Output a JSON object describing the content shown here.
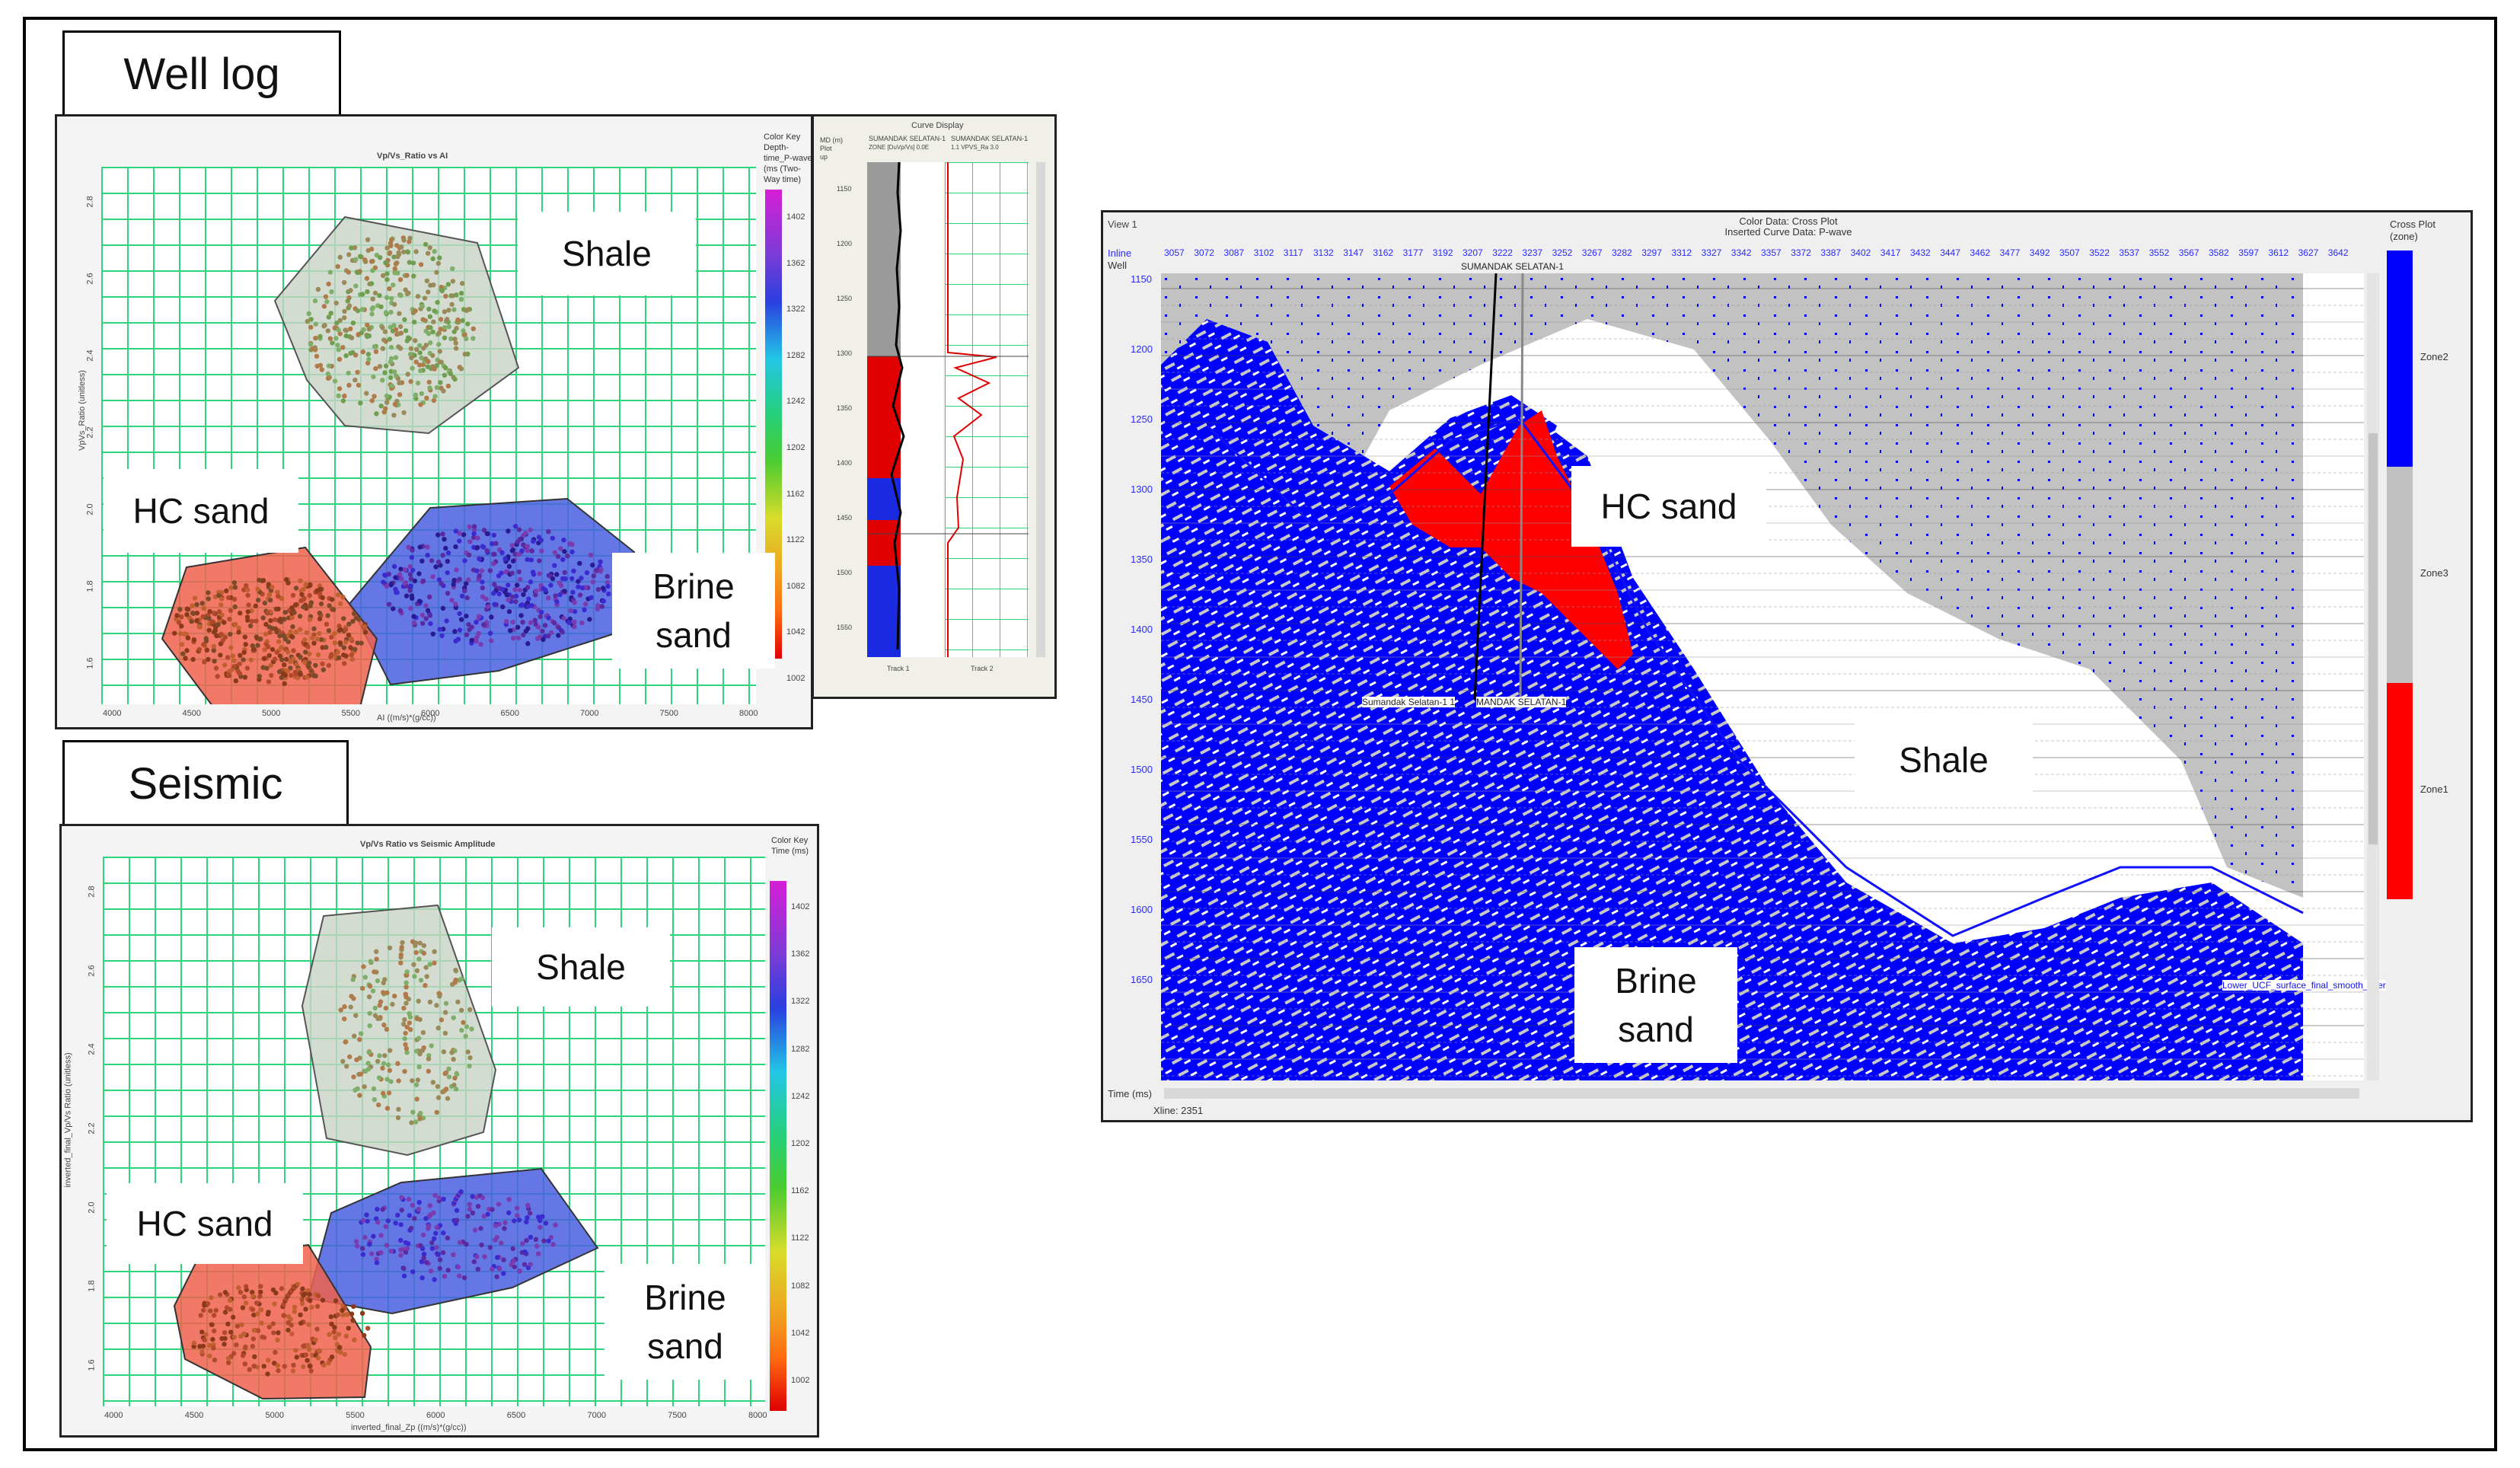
{
  "sections": {
    "well_log": "Well log",
    "seismic": "Seismic"
  },
  "well_crossplot": {
    "title": "Vp/Vs_Ratio vs AI",
    "ylabel": "VpVs_Ratio (unitless)",
    "xlabel": "AI ((m/s)*(g/cc))",
    "x_ticks": [
      "4000",
      "4500",
      "5000",
      "5500",
      "6000",
      "6500",
      "7000",
      "7500",
      "8000"
    ],
    "y_ticks": [
      "1.6",
      "1.8",
      "2.0",
      "2.2",
      "2.4",
      "2.6",
      "2.8"
    ],
    "color_key_title": "Color Key\nDepth-time_P-wave\n(ms (Two-Way time)",
    "color_key_ticks": [
      "1402",
      "1362",
      "1322",
      "1282",
      "1242",
      "1202",
      "1162",
      "1122",
      "1082",
      "1042",
      "1002"
    ],
    "zones": {
      "shale": "Shale",
      "hc_sand": "HC sand",
      "brine_sand": "Brine\nsand"
    }
  },
  "curve_display": {
    "title": "Curve Display",
    "header_left": "MD (m)\nPlot\nup",
    "track1_name": "SUMANDAK SELATAN-1",
    "track2_name": "SUMANDAK SELATAN-1",
    "track1_curve": "ZONE  [DuVp/Vs]  0.0E",
    "track2_curve": "1.1  VPVS_Ra  3.0",
    "depths": [
      "1150",
      "1200",
      "1250",
      "1300",
      "1350",
      "1400",
      "1450",
      "1500",
      "1550"
    ],
    "track1_label": "Track 1",
    "track2_label": "Track 2"
  },
  "seismic_crossplot": {
    "title": "Vp/Vs Ratio vs Seismic Amplitude",
    "ylabel": "inverted_final_Vp/Vs Ratio (unitless)",
    "xlabel": "inverted_final_Zp ((m/s)*(g/cc))",
    "x_ticks": [
      "4000",
      "4500",
      "5000",
      "5500",
      "6000",
      "6500",
      "7000",
      "7500",
      "8000"
    ],
    "y_ticks": [
      "1.6",
      "1.8",
      "2.0",
      "2.2",
      "2.4",
      "2.6",
      "2.8"
    ],
    "color_key_title": "Color Key\nTime (ms)",
    "color_key_ticks": [
      "1402",
      "1362",
      "1322",
      "1282",
      "1242",
      "1202",
      "1162",
      "1122",
      "1082",
      "1042",
      "1002"
    ],
    "zones": {
      "shale": "Shale",
      "hc_sand": "HC sand",
      "brine_sand": "Brine\nsand"
    }
  },
  "seismic_section": {
    "view": "View 1",
    "title_line1": "Color Data: Cross Plot",
    "title_line2": "Inserted Curve Data: P-wave",
    "inline_label": "Inline",
    "well_label": "Well",
    "inlines": [
      "3057",
      "3072",
      "3087",
      "3102",
      "3117",
      "3132",
      "3147",
      "3162",
      "3177",
      "3192",
      "3207",
      "3222",
      "3237",
      "3252",
      "3267",
      "3282",
      "3297",
      "3312",
      "3327",
      "3342",
      "3357",
      "3372",
      "3387",
      "3402",
      "3417",
      "3432",
      "3447",
      "3462",
      "3477",
      "3492",
      "3507",
      "3522",
      "3537",
      "3552",
      "3567",
      "3582",
      "3597",
      "3612",
      "3627",
      "3642"
    ],
    "well_top_name": "SUMANDAK SELATAN-1",
    "well_name_lower_1": "Sumandak Selatan-1 1",
    "well_name_lower_2": "MANDAK SELATAN-1",
    "times": [
      "1150",
      "1200",
      "1250",
      "1300",
      "1350",
      "1400",
      "1450",
      "1500",
      "1550",
      "1600",
      "1650"
    ],
    "time_axis_label": "Time (ms)",
    "xline_label": "Xline: 2351",
    "horizon_label": "Lower_UCF_surface_final_smooth_inter",
    "legend_title": "Cross Plot\n(zone)",
    "legend_zones": [
      "Zone2",
      "Zone3",
      "Zone1"
    ],
    "labels": {
      "hc_sand": "HC sand",
      "shale": "Shale",
      "brine_sand": "Brine\nsand"
    }
  },
  "colors": {
    "shale_zone": "#c9d3c5",
    "hc_zone": "#f0604d",
    "brine_zone": "#4a5fe0",
    "zone2_blue": "#0000ff",
    "zone3_gray": "#c0c0c0",
    "zone1_red": "#ff0000"
  }
}
